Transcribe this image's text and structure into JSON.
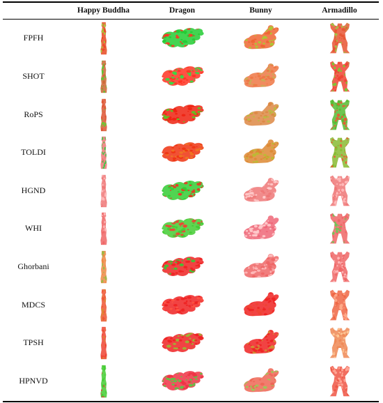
{
  "columns": [
    "Happy Buddha",
    "Dragon",
    "Bunny",
    "Armadillo"
  ],
  "rows": [
    "FPFH",
    "SHOT",
    "RoPS",
    "TOLDI",
    "HGND",
    "WHI",
    "Ghorbani",
    "MDCS",
    "TPSH",
    "HPNVD"
  ],
  "cells": [
    [
      {
        "model": "buddha",
        "colors": [
          "#e84a22",
          "#9adf3a"
        ]
      },
      {
        "model": "dragon",
        "colors": [
          "#22cc33",
          "#ff3322"
        ]
      },
      {
        "model": "bunny",
        "colors": [
          "#ee6633",
          "#aacc33"
        ]
      },
      {
        "model": "armadillo",
        "colors": [
          "#e85533",
          "#99cc44"
        ]
      }
    ],
    [
      {
        "model": "buddha",
        "colors": [
          "#cc6633",
          "#55cc33"
        ]
      },
      {
        "model": "dragon",
        "colors": [
          "#ff3322",
          "#33dd44"
        ]
      },
      {
        "model": "bunny",
        "colors": [
          "#ee7744",
          "#ccaa55"
        ]
      },
      {
        "model": "armadillo",
        "colors": [
          "#ee4433",
          "#77cc33"
        ]
      }
    ],
    [
      {
        "model": "buddha",
        "colors": [
          "#dd5533",
          "#66cc33"
        ]
      },
      {
        "model": "dragon",
        "colors": [
          "#ee2211",
          "#55cc22"
        ]
      },
      {
        "model": "bunny",
        "colors": [
          "#dd8844",
          "#bbbb44"
        ]
      },
      {
        "model": "armadillo",
        "colors": [
          "#55bb33",
          "#ee5533"
        ]
      }
    ],
    [
      {
        "model": "buddha",
        "colors": [
          "#ee7777",
          "#33cc44"
        ]
      },
      {
        "model": "dragon",
        "colors": [
          "#ee3311",
          "#ee7722"
        ]
      },
      {
        "model": "bunny",
        "colors": [
          "#dd8833",
          "#bbbb33"
        ]
      },
      {
        "model": "armadillo",
        "colors": [
          "#88bb33",
          "#ee5533"
        ]
      }
    ],
    [
      {
        "model": "buddha",
        "colors": [
          "#ee7777",
          "#ffbbbb"
        ]
      },
      {
        "model": "dragon",
        "colors": [
          "#33cc33",
          "#ee3322"
        ]
      },
      {
        "model": "bunny",
        "colors": [
          "#ee7777",
          "#ffcccc"
        ]
      },
      {
        "model": "armadillo",
        "colors": [
          "#ee7777",
          "#ffbbbb"
        ]
      }
    ],
    [
      {
        "model": "buddha",
        "colors": [
          "#ee6666",
          "#ffbbbb"
        ]
      },
      {
        "model": "dragon",
        "colors": [
          "#44cc33",
          "#ee4433"
        ]
      },
      {
        "model": "bunny",
        "colors": [
          "#ee6677",
          "#ffcccc"
        ]
      },
      {
        "model": "armadillo",
        "colors": [
          "#ee6666",
          "#66cc55"
        ]
      }
    ],
    [
      {
        "model": "buddha",
        "colors": [
          "#ee8844",
          "#99bb44"
        ]
      },
      {
        "model": "dragon",
        "colors": [
          "#ee2222",
          "#33cc33"
        ]
      },
      {
        "model": "bunny",
        "colors": [
          "#ee6666",
          "#ffbbbb"
        ]
      },
      {
        "model": "armadillo",
        "colors": [
          "#ee6666",
          "#ffbbbb"
        ]
      }
    ],
    [
      {
        "model": "buddha",
        "colors": [
          "#ee5533",
          "#dd8833"
        ]
      },
      {
        "model": "dragon",
        "colors": [
          "#ee2222",
          "#ff5544"
        ]
      },
      {
        "model": "bunny",
        "colors": [
          "#ee2222",
          "#ee4433"
        ]
      },
      {
        "model": "armadillo",
        "colors": [
          "#ee6644",
          "#ffaa88"
        ]
      }
    ],
    [
      {
        "model": "buddha",
        "colors": [
          "#ee4433",
          "#dd8833"
        ]
      },
      {
        "model": "dragon",
        "colors": [
          "#ee2222",
          "#99bb33"
        ]
      },
      {
        "model": "bunny",
        "colors": [
          "#ee2222",
          "#cc9933"
        ]
      },
      {
        "model": "armadillo",
        "colors": [
          "#ee8855",
          "#ffcc99"
        ]
      }
    ],
    [
      {
        "model": "buddha",
        "colors": [
          "#44cc33",
          "#ee3333"
        ]
      },
      {
        "model": "dragon",
        "colors": [
          "#ee3344",
          "#55cc44"
        ]
      },
      {
        "model": "bunny",
        "colors": [
          "#ee6655",
          "#99cc55"
        ]
      },
      {
        "model": "armadillo",
        "colors": [
          "#ee5544",
          "#ffaa99"
        ]
      }
    ]
  ]
}
